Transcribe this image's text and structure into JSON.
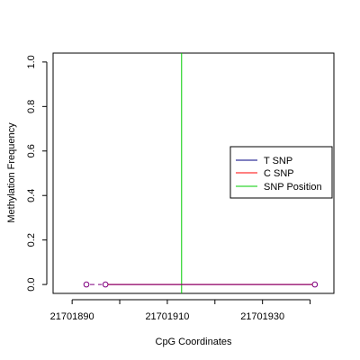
{
  "chart_data": {
    "type": "line",
    "xlabel": "CpG Coordinates",
    "ylabel": "Methylation Frequency",
    "xlim": [
      21701886,
      21701945
    ],
    "ylim": [
      -0.04,
      1.04
    ],
    "x_ticks": [
      21701890,
      21701910,
      21701930
    ],
    "x_tick_labels": [
      "21701890",
      "21701910",
      "21701930"
    ],
    "y_ticks": [
      0,
      0.2,
      0.4,
      0.6,
      0.8,
      1.0
    ],
    "y_tick_labels": [
      "0.0",
      "0.2",
      "0.4",
      "0.6",
      "0.8",
      "1.0"
    ],
    "series": [
      {
        "name": "T SNP",
        "color": "#000080",
        "x": [
          21701897,
          21701941
        ],
        "y": [
          0,
          0
        ]
      },
      {
        "name": "C SNP",
        "color": "#ff0000",
        "x": [
          21701897,
          21701941
        ],
        "y": [
          0,
          0
        ]
      }
    ],
    "points": {
      "color": "#800080",
      "x": [
        21701893,
        21701897,
        21701941
      ],
      "y": [
        0,
        0,
        0
      ]
    },
    "dashed_segment": {
      "color": "#800080",
      "x": [
        21701893,
        21701897
      ],
      "y": [
        0,
        0
      ]
    },
    "snp_position": {
      "name": "SNP Position",
      "color": "#00cc00",
      "x": 21701913
    },
    "legend": {
      "placement": "right",
      "entries": [
        {
          "label": "T SNP",
          "color": "#000080"
        },
        {
          "label": "C SNP",
          "color": "#ff0000"
        },
        {
          "label": "SNP Position",
          "color": "#00cc00"
        }
      ]
    },
    "grid": false
  }
}
